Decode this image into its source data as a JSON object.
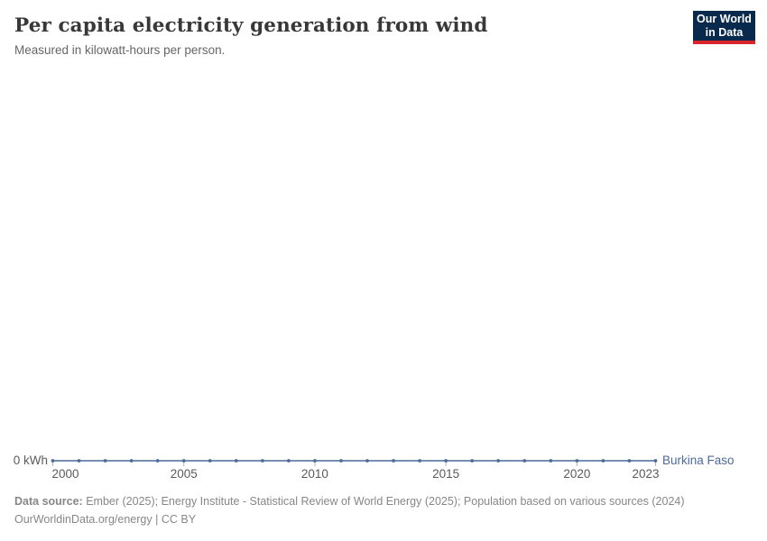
{
  "header": {
    "title": "Per capita electricity generation from wind",
    "subtitle": "Measured in kilowatt-hours per person.",
    "logo": {
      "line1": "Our World",
      "line2": "in Data"
    }
  },
  "colors": {
    "series": "#4c6a9c",
    "axis_text": "#5b5b5b",
    "tick": "#a9b5c2",
    "logo_bg": "#0a2a4d",
    "logo_accent": "#d8262c"
  },
  "chart_data": {
    "type": "line",
    "title": "Per capita electricity generation from wind",
    "subtitle": "Measured in kilowatt-hours per person.",
    "unit": "kWh",
    "x": [
      2000,
      2001,
      2002,
      2003,
      2004,
      2005,
      2006,
      2007,
      2008,
      2009,
      2010,
      2011,
      2012,
      2013,
      2014,
      2015,
      2016,
      2017,
      2018,
      2019,
      2020,
      2021,
      2022,
      2023
    ],
    "x_ticks": [
      2000,
      2005,
      2010,
      2015,
      2020,
      2023
    ],
    "y_ticks": [
      0
    ],
    "y_zero_label": "0 kWh",
    "ylim": [
      0,
      0
    ],
    "grid": false,
    "legend_position": "end-of-line",
    "series": [
      {
        "name": "Burkina Faso",
        "color": "#4c6a9c",
        "values": [
          0,
          0,
          0,
          0,
          0,
          0,
          0,
          0,
          0,
          0,
          0,
          0,
          0,
          0,
          0,
          0,
          0,
          0,
          0,
          0,
          0,
          0,
          0,
          0
        ]
      }
    ]
  },
  "footer": {
    "datasource_label": "Data source:",
    "datasource_text": "Ember (2025); Energy Institute - Statistical Review of World Energy (2025); Population based on various sources (2024)",
    "link": "OurWorldinData.org/energy",
    "license": "| CC BY"
  }
}
